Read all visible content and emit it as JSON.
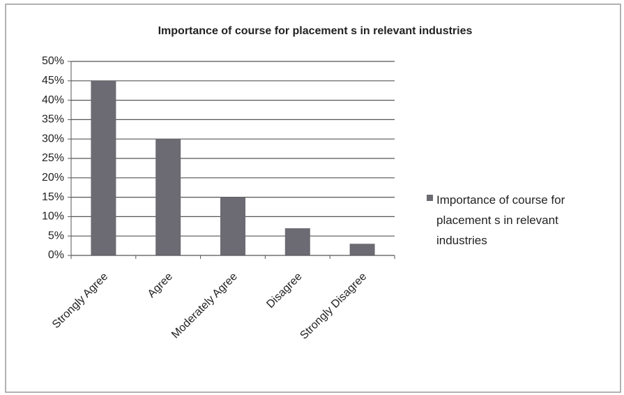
{
  "chart_data": {
    "type": "bar",
    "title": "Importance of course for placement s in relevant industries",
    "categories": [
      "Strongly Agree",
      "Agree",
      "Moderately Agree",
      "Disagree",
      "Strongly Disagree"
    ],
    "series": [
      {
        "name": "Importance of course for placement s in relevant industries",
        "color": "#6c6b73",
        "values": [
          45,
          30,
          15,
          7,
          3
        ]
      }
    ],
    "ylim": [
      0,
      50
    ],
    "yticks": [
      {
        "value": 0,
        "label": "0%"
      },
      {
        "value": 5,
        "label": "5%"
      },
      {
        "value": 10,
        "label": "10%"
      },
      {
        "value": 15,
        "label": "15%"
      },
      {
        "value": 20,
        "label": "20%"
      },
      {
        "value": 25,
        "label": "25%"
      },
      {
        "value": 30,
        "label": "30%"
      },
      {
        "value": 35,
        "label": "35%"
      },
      {
        "value": 40,
        "label": "40%"
      },
      {
        "value": 45,
        "label": "45%"
      },
      {
        "value": 50,
        "label": "50%"
      }
    ],
    "grid": true,
    "legend": "right"
  }
}
